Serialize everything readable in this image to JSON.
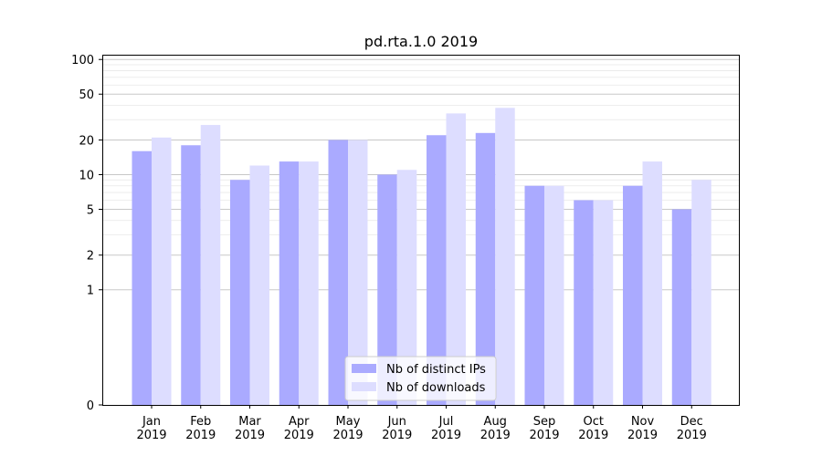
{
  "chart_data": {
    "type": "bar",
    "title": "pd.rta.1.0 2019",
    "xlabel": "",
    "ylabel": "",
    "yscale": "symlog",
    "ylim": [
      0,
      110
    ],
    "yticks": [
      0,
      1,
      2,
      5,
      10,
      20,
      50,
      100
    ],
    "grid": true,
    "legend_position": "bottom-center",
    "categories": [
      "Jan\n2019",
      "Feb\n2019",
      "Mar\n2019",
      "Apr\n2019",
      "May\n2019",
      "Jun\n2019",
      "Jul\n2019",
      "Aug\n2019",
      "Sep\n2019",
      "Oct\n2019",
      "Nov\n2019",
      "Dec\n2019"
    ],
    "series": [
      {
        "name": "Nb of distinct IPs",
        "color": "#aaaaff",
        "values": [
          16,
          18,
          9,
          13,
          20,
          10,
          22,
          23,
          8,
          6,
          8,
          5
        ]
      },
      {
        "name": "Nb of downloads",
        "color": "#ddddff",
        "values": [
          21,
          27,
          12,
          13,
          20,
          11,
          34,
          38,
          8,
          6,
          13,
          9
        ]
      }
    ]
  }
}
